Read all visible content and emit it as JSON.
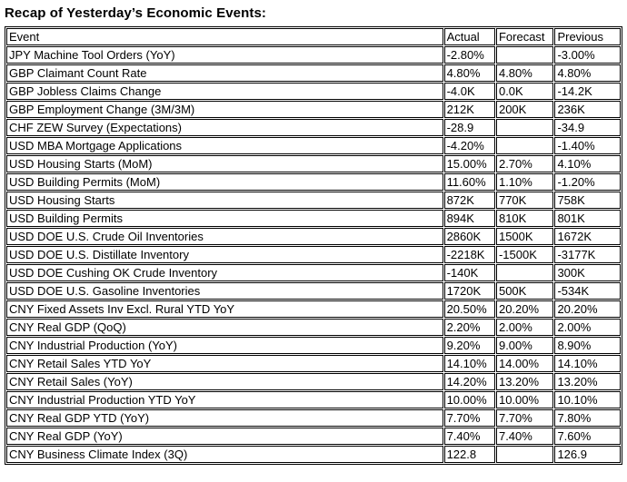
{
  "title": "Recap of Yesterday’s Economic Events:",
  "colors": {
    "background": "#ffffff",
    "text": "#000000",
    "table_border": "#000000"
  },
  "table": {
    "columns": [
      "Event",
      "Actual",
      "Forecast",
      "Previous"
    ],
    "rows": [
      {
        "event": "JPY Machine Tool Orders (YoY)",
        "actual": "-2.80%",
        "forecast": "",
        "previous": "-3.00%"
      },
      {
        "event": "GBP Claimant Count Rate",
        "actual": "4.80%",
        "forecast": "4.80%",
        "previous": "4.80%"
      },
      {
        "event": "GBP Jobless Claims Change",
        "actual": "-4.0K",
        "forecast": "0.0K",
        "previous": "-14.2K"
      },
      {
        "event": "GBP Employment Change (3M/3M)",
        "actual": "212K",
        "forecast": "200K",
        "previous": "236K"
      },
      {
        "event": "CHF ZEW Survey (Expectations)",
        "actual": "-28.9",
        "forecast": "",
        "previous": "-34.9"
      },
      {
        "event": "USD MBA Mortgage Applications",
        "actual": "-4.20%",
        "forecast": "",
        "previous": "-1.40%"
      },
      {
        "event": "USD Housing Starts (MoM)",
        "actual": "15.00%",
        "forecast": "2.70%",
        "previous": "4.10%"
      },
      {
        "event": "USD Building Permits (MoM)",
        "actual": "11.60%",
        "forecast": "1.10%",
        "previous": "-1.20%"
      },
      {
        "event": "USD Housing Starts",
        "actual": "872K",
        "forecast": "770K",
        "previous": "758K"
      },
      {
        "event": "USD Building Permits",
        "actual": "894K",
        "forecast": "810K",
        "previous": "801K"
      },
      {
        "event": "USD DOE U.S. Crude Oil Inventories",
        "actual": "2860K",
        "forecast": "1500K",
        "previous": "1672K"
      },
      {
        "event": "USD DOE U.S. Distillate Inventory",
        "actual": "-2218K",
        "forecast": "-1500K",
        "previous": "-3177K"
      },
      {
        "event": "USD DOE Cushing OK Crude Inventory",
        "actual": "-140K",
        "forecast": "",
        "previous": "300K"
      },
      {
        "event": "USD DOE U.S. Gasoline Inventories",
        "actual": "1720K",
        "forecast": "500K",
        "previous": "-534K"
      },
      {
        "event": "CNY Fixed Assets Inv Excl. Rural YTD YoY",
        "actual": "20.50%",
        "forecast": "20.20%",
        "previous": "20.20%"
      },
      {
        "event": "CNY Real GDP (QoQ)",
        "actual": "2.20%",
        "forecast": "2.00%",
        "previous": "2.00%"
      },
      {
        "event": "CNY Industrial Production (YoY)",
        "actual": "9.20%",
        "forecast": "9.00%",
        "previous": "8.90%"
      },
      {
        "event": "CNY Retail Sales YTD YoY",
        "actual": "14.10%",
        "forecast": "14.00%",
        "previous": "14.10%"
      },
      {
        "event": "CNY Retail Sales (YoY)",
        "actual": "14.20%",
        "forecast": "13.20%",
        "previous": "13.20%"
      },
      {
        "event": "CNY Industrial Production YTD YoY",
        "actual": "10.00%",
        "forecast": "10.00%",
        "previous": "10.10%"
      },
      {
        "event": "CNY Real GDP YTD (YoY)",
        "actual": "7.70%",
        "forecast": "7.70%",
        "previous": "7.80%"
      },
      {
        "event": "CNY Real GDP (YoY)",
        "actual": "7.40%",
        "forecast": "7.40%",
        "previous": "7.60%"
      },
      {
        "event": "CNY Business Climate Index (3Q)",
        "actual": "122.8",
        "forecast": "",
        "previous": "126.9"
      }
    ]
  }
}
